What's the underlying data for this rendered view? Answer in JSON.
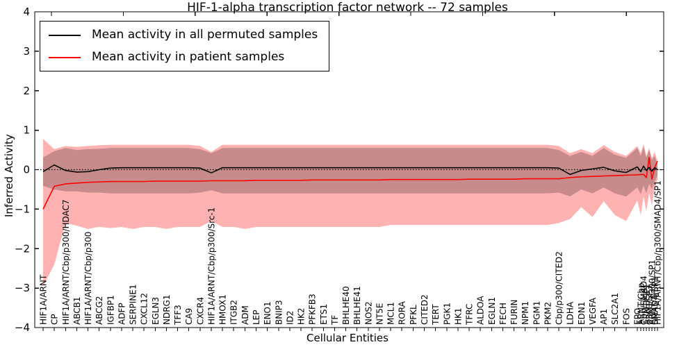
{
  "figure": {
    "background": "#ffffff"
  },
  "legend": {
    "position": "upper left",
    "entries": [
      {
        "id": "permuted",
        "label": "Mean activity in all permuted samples",
        "color": "#000000"
      },
      {
        "id": "patient",
        "label": "Mean activity in patient samples",
        "color": "#ff0000"
      }
    ]
  },
  "chart_data": {
    "type": "line",
    "title": "HIF-1-alpha transcription factor network -- 72 samples",
    "xlabel": "Cellular Entities",
    "ylabel": "Inferred Activity",
    "ylim": [
      -4,
      4
    ],
    "yticks": [
      -4,
      -3,
      -2,
      -1,
      0,
      1,
      2,
      3,
      4
    ],
    "zero_line": "dotted",
    "grid": false,
    "note": "shaded bands = +/- spread around each mean; rightmost category labels heavily overlap and are partly illegible, topmost reads SMAD4/SP1",
    "categories": [
      "HIF1A/ARNT",
      "CP",
      "HIF1A/ARNT/Cbp/p300/HDAC7",
      "ABCB1",
      "HIF1A/ARNT/Cbp/p300",
      "ABCG2",
      "IGFBP1",
      "ADFP",
      "SERPINE1",
      "CXCL12",
      "EGLN3",
      "NDRG1",
      "TFF3",
      "CA9",
      "CXCR4",
      "HIF1A/ARNT/Cbp/p300/Src-1",
      "HMOX1",
      "ITGB2",
      "ADM",
      "LEP",
      "ENO1",
      "BNIP3",
      "ID2",
      "HK2",
      "PFKFB3",
      "ETS1",
      "TF",
      "BHLHE40",
      "BHLHE41",
      "NOS2",
      "NT5E",
      "MCL1",
      "RORA",
      "PFKL",
      "CITED2",
      "TERT",
      "PGK1",
      "HK1",
      "TFRC",
      "ALDOA",
      "EGLN1",
      "FECH",
      "FURIN",
      "NPM1",
      "PGM1",
      "PKM2",
      "Cbp/p300/CITED2",
      "LDHA",
      "EDN1",
      "VEGFA",
      "AP1",
      "SLC2A1",
      "FOS",
      "EPO",
      "ARNT/Cbp",
      "Cbp/SMAD4",
      "ARNT/SP1",
      "p300/SP3",
      "ARNT/p300/SP1",
      "SMAD4/SP1",
      "HIF1A/ARNT/Cbp/p300/SMAD4/SP1"
    ],
    "series": [
      {
        "id": "permuted",
        "name": "Mean activity in all permuted samples",
        "color": "#000000",
        "band_color": "#000000",
        "band_opacity": 0.22,
        "values": [
          -0.05,
          0.12,
          -0.02,
          -0.06,
          -0.05,
          0.0,
          0.04,
          0.05,
          0.05,
          0.05,
          0.05,
          0.05,
          0.05,
          0.05,
          0.04,
          -0.08,
          0.05,
          0.05,
          0.05,
          0.05,
          0.05,
          0.05,
          0.05,
          0.05,
          0.05,
          0.05,
          0.05,
          0.05,
          0.05,
          0.05,
          0.05,
          0.05,
          0.05,
          0.05,
          0.05,
          0.05,
          0.05,
          0.05,
          0.05,
          0.05,
          0.05,
          0.05,
          0.05,
          0.05,
          0.05,
          0.05,
          0.04,
          -0.12,
          -0.02,
          0.02,
          0.06,
          -0.03,
          -0.07,
          0.07,
          -0.05,
          0.09,
          -0.02,
          0.06,
          -0.04,
          0.05,
          0.0
        ],
        "band_top": [
          0.31,
          0.47,
          0.55,
          0.5,
          0.52,
          0.53,
          0.55,
          0.55,
          0.55,
          0.55,
          0.55,
          0.55,
          0.55,
          0.55,
          0.52,
          0.42,
          0.55,
          0.55,
          0.55,
          0.55,
          0.55,
          0.55,
          0.55,
          0.55,
          0.55,
          0.55,
          0.55,
          0.55,
          0.55,
          0.55,
          0.55,
          0.55,
          0.55,
          0.55,
          0.55,
          0.55,
          0.55,
          0.55,
          0.55,
          0.55,
          0.55,
          0.55,
          0.55,
          0.55,
          0.55,
          0.55,
          0.5,
          0.35,
          0.45,
          0.35,
          0.55,
          0.38,
          0.3,
          0.55,
          0.35,
          0.58,
          0.3,
          0.5,
          0.25,
          0.35,
          0.12
        ],
        "band_bottom": [
          -0.41,
          -0.5,
          -0.55,
          -0.55,
          -0.58,
          -0.58,
          -0.6,
          -0.6,
          -0.6,
          -0.6,
          -0.6,
          -0.6,
          -0.6,
          -0.6,
          -0.58,
          -0.52,
          -0.6,
          -0.6,
          -0.6,
          -0.6,
          -0.6,
          -0.6,
          -0.6,
          -0.6,
          -0.6,
          -0.6,
          -0.6,
          -0.6,
          -0.6,
          -0.6,
          -0.6,
          -0.6,
          -0.6,
          -0.6,
          -0.6,
          -0.6,
          -0.6,
          -0.6,
          -0.6,
          -0.6,
          -0.6,
          -0.6,
          -0.6,
          -0.6,
          -0.6,
          -0.6,
          -0.58,
          -0.68,
          -0.5,
          -0.6,
          -0.45,
          -0.6,
          -0.68,
          -0.45,
          -0.62,
          -0.4,
          -0.6,
          -0.35,
          -0.5,
          -0.3,
          -0.15
        ]
      },
      {
        "id": "patient",
        "name": "Mean activity in patient samples",
        "color": "#ff0000",
        "band_color": "#ff0000",
        "band_opacity": 0.3,
        "values": [
          -1.0,
          -0.42,
          -0.36,
          -0.34,
          -0.32,
          -0.31,
          -0.3,
          -0.3,
          -0.3,
          -0.3,
          -0.29,
          -0.29,
          -0.29,
          -0.29,
          -0.29,
          -0.28,
          -0.28,
          -0.28,
          -0.28,
          -0.27,
          -0.27,
          -0.27,
          -0.27,
          -0.27,
          -0.26,
          -0.26,
          -0.26,
          -0.26,
          -0.26,
          -0.26,
          -0.26,
          -0.25,
          -0.25,
          -0.25,
          -0.25,
          -0.25,
          -0.25,
          -0.25,
          -0.24,
          -0.24,
          -0.24,
          -0.24,
          -0.24,
          -0.23,
          -0.23,
          -0.23,
          -0.23,
          -0.2,
          -0.18,
          -0.17,
          -0.16,
          -0.15,
          -0.14,
          -0.13,
          -0.12,
          -0.12,
          -0.2,
          0.31,
          -0.24,
          0.05,
          0.22
        ],
        "band_top": [
          0.78,
          0.52,
          0.6,
          0.58,
          0.6,
          0.62,
          0.63,
          0.63,
          0.63,
          0.63,
          0.63,
          0.63,
          0.63,
          0.63,
          0.6,
          0.45,
          0.63,
          0.63,
          0.63,
          0.63,
          0.63,
          0.63,
          0.63,
          0.63,
          0.63,
          0.63,
          0.63,
          0.63,
          0.63,
          0.63,
          0.63,
          0.63,
          0.63,
          0.63,
          0.63,
          0.63,
          0.63,
          0.63,
          0.63,
          0.63,
          0.63,
          0.63,
          0.63,
          0.63,
          0.63,
          0.63,
          0.6,
          0.42,
          0.52,
          0.42,
          0.62,
          0.45,
          0.35,
          0.6,
          0.42,
          0.65,
          0.35,
          0.55,
          0.3,
          0.45,
          0.22
        ],
        "band_bottom": [
          -2.95,
          -2.4,
          -1.35,
          -1.42,
          -1.5,
          -1.45,
          -1.48,
          -1.45,
          -1.5,
          -1.45,
          -1.45,
          -1.5,
          -1.45,
          -1.45,
          -1.45,
          -1.3,
          -1.45,
          -1.45,
          -1.5,
          -1.45,
          -1.45,
          -1.45,
          -1.45,
          -1.45,
          -1.45,
          -1.45,
          -1.45,
          -1.45,
          -1.45,
          -1.45,
          -1.45,
          -1.4,
          -1.4,
          -1.4,
          -1.4,
          -1.4,
          -1.4,
          -1.4,
          -1.4,
          -1.4,
          -1.4,
          -1.4,
          -1.4,
          -1.4,
          -1.4,
          -1.4,
          -1.35,
          -1.25,
          -0.95,
          -1.2,
          -0.8,
          -1.15,
          -1.3,
          -0.78,
          -1.15,
          -0.68,
          -1.05,
          -0.6,
          -0.9,
          -0.45,
          -0.25
        ]
      }
    ]
  }
}
